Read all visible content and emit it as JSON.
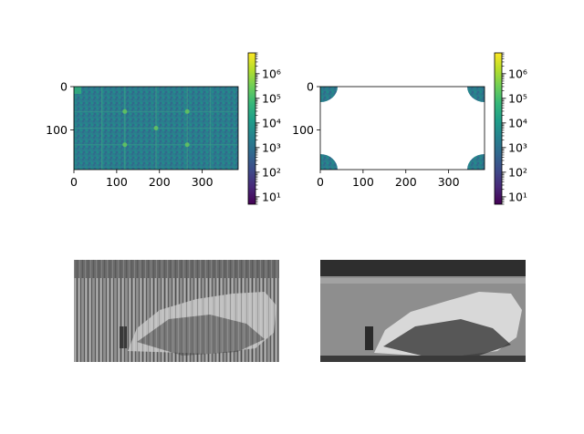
{
  "figure": {
    "background": "#ffffff"
  },
  "colors": {
    "viridis": [
      "#440154",
      "#482878",
      "#3e4a89",
      "#31688e",
      "#26828e",
      "#1f9e89",
      "#35b779",
      "#6ece58",
      "#b5de2b",
      "#fde725"
    ],
    "spectrum_base": "#2a7b8e",
    "mask_fill": "#2a8a8c"
  },
  "chart_data": [
    {
      "type": "heatmap",
      "description_key": "fft_spectrum",
      "title": "",
      "xlabel": "",
      "ylabel": "",
      "xlim": [
        0,
        384
      ],
      "ylim": [
        0,
        192
      ],
      "xticks": [
        0,
        100,
        200,
        300
      ],
      "yticks": [
        0,
        100
      ],
      "tick_labels_x": [
        "0",
        "100",
        "200",
        "300"
      ],
      "tick_labels_y": [
        "0",
        "100"
      ],
      "colorbar": {
        "scale": "log",
        "range": [
          5,
          7000000
        ],
        "ticks": [
          10,
          100,
          1000,
          10000,
          100000,
          1000000
        ],
        "tick_labels": [
          "10¹",
          "10²",
          "10³",
          "10⁴",
          "10⁵",
          "10⁶"
        ]
      },
      "colormap": "viridis"
    },
    {
      "type": "heatmap",
      "description_key": "filtered_spectrum",
      "title": "",
      "xlabel": "",
      "ylabel": "",
      "xlim": [
        0,
        384
      ],
      "ylim": [
        0,
        192
      ],
      "xticks": [
        0,
        100,
        200,
        300
      ],
      "yticks": [
        0,
        100
      ],
      "tick_labels_x": [
        "0",
        "100",
        "200",
        "300"
      ],
      "tick_labels_y": [
        "0",
        "100"
      ],
      "colorbar": {
        "scale": "log",
        "range": [
          5,
          7000000
        ],
        "ticks": [
          10,
          100,
          1000,
          10000,
          100000,
          1000000
        ],
        "tick_labels": [
          "10¹",
          "10²",
          "10³",
          "10⁴",
          "10⁵",
          "10⁶"
        ]
      },
      "colormap": "viridis",
      "kept_region": "corners"
    },
    {
      "type": "image",
      "description_key": "original_image",
      "colormap": "gray",
      "axis": "off"
    },
    {
      "type": "image",
      "description_key": "reconstructed_image",
      "colormap": "gray",
      "axis": "off"
    }
  ]
}
